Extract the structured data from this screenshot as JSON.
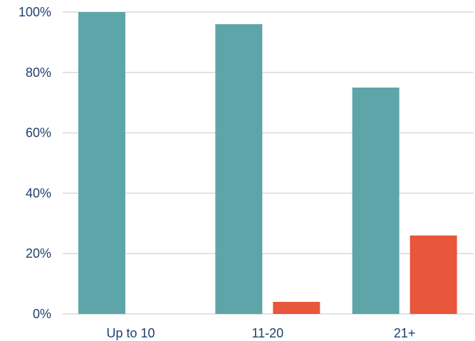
{
  "chart_data": {
    "type": "bar",
    "categories": [
      "Up to 10",
      "11-20",
      "21+"
    ],
    "series": [
      {
        "values": [
          100,
          96,
          75
        ],
        "color": "#5ea5aa"
      },
      {
        "values": [
          0,
          4,
          26
        ],
        "color": "#e8563b"
      }
    ],
    "ylim": [
      0,
      100
    ],
    "yticks": [
      0,
      20,
      40,
      60,
      80,
      100
    ],
    "ytick_labels": [
      "0%",
      "20%",
      "40%",
      "60%",
      "80%",
      "100%"
    ],
    "grid": true,
    "legend": "none",
    "colors": {
      "grid": "#d9d9d9",
      "axis_text": "#1f3f6e",
      "category_text": "#1f3f6e"
    }
  }
}
